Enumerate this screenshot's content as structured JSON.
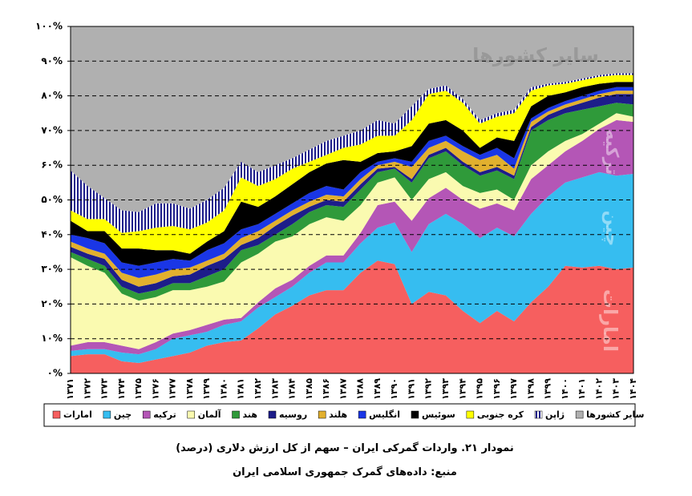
{
  "chart_data": {
    "type": "stacked-area",
    "title": "نمودار ۲۱. واردات گمرکی ایران – سهم از کل ارزش دلاری (درصد)",
    "subtitle": "منبع: داده‌های گمرک جمهوری اسلامی ایران",
    "categories": [
      "۱۳۷۱",
      "۱۳۷۲",
      "۱۳۷۳",
      "۱۳۷۴",
      "۱۳۷۵",
      "۱۳۷۶",
      "۱۳۷۷",
      "۱۳۷۸",
      "۱۳۷۹",
      "۱۳۸۰",
      "۱۳۸۱",
      "۱۳۸۲",
      "۱۳۸۳",
      "۱۳۸۴",
      "۱۳۸۵",
      "۱۳۸۶",
      "۱۳۸۷",
      "۱۳۸۸",
      "۱۳۸۹",
      "۱۳۹۰",
      "۱۳۹۱",
      "۱۳۹۲",
      "۱۳۹۳",
      "۱۳۹۴",
      "۱۳۹۵",
      "۱۳۹۶",
      "۱۳۹۷",
      "۱۳۹۸",
      "۱۳۹۹",
      "۱۴۰۰",
      "۱۴۰۱",
      "۱۴۰۲",
      "۱۴۰۳",
      "۱۴۰۴"
    ],
    "series": [
      {
        "name": "امارات",
        "color": "#f65f5f",
        "values": [
          5,
          5.5,
          5.5,
          3.5,
          3,
          4,
          5,
          6,
          8,
          9,
          9.5,
          13,
          17,
          19.5,
          22.5,
          24,
          24,
          29,
          32.5,
          31.5,
          20,
          23.5,
          22.5,
          18,
          14.5,
          18,
          15,
          20.5,
          25,
          31,
          30.5,
          31,
          30,
          30.5
        ]
      },
      {
        "name": "چین",
        "color": "#36bdf0",
        "values": [
          1.5,
          1.5,
          1.5,
          2.5,
          2.5,
          3,
          5,
          5,
          4,
          5,
          5.5,
          6,
          5,
          5.5,
          6.5,
          8,
          8,
          8.5,
          9.5,
          12,
          15,
          19.5,
          23.5,
          25,
          24.5,
          24,
          24.5,
          25.5,
          26,
          24,
          26,
          27,
          27,
          27
        ]
      },
      {
        "name": "ترکیه",
        "color": "#b456b6",
        "values": [
          1.5,
          2,
          2,
          2,
          1.5,
          2,
          1.5,
          1.5,
          2,
          1.5,
          1,
          1.5,
          2.5,
          2,
          2,
          2,
          2,
          3,
          6.5,
          6,
          9,
          7.5,
          7.5,
          7,
          8.5,
          7,
          7.5,
          10,
          9,
          9,
          10.5,
          12.5,
          16,
          15
        ]
      },
      {
        "name": "آلمان",
        "color": "#fafab0",
        "values": [
          25.5,
          22,
          20,
          15,
          14,
          13,
          12.5,
          11.5,
          11,
          11,
          16,
          14,
          13.5,
          12.5,
          12,
          11,
          10,
          8,
          6.5,
          7,
          6,
          5.5,
          4.5,
          4,
          4.5,
          4,
          3,
          4,
          4,
          3,
          2,
          1.5,
          2,
          1.5
        ]
      },
      {
        "name": "هند",
        "color": "#2f9a3a",
        "values": [
          1.5,
          2,
          2,
          2,
          2,
          2,
          2,
          2,
          3,
          3.5,
          3.5,
          2.5,
          2,
          3.5,
          3.5,
          3.5,
          4,
          4.5,
          3,
          2.5,
          5,
          6,
          6,
          6,
          5,
          5.5,
          6,
          10,
          9,
          8,
          7,
          5,
          3,
          3.5
        ]
      },
      {
        "name": "روسیه",
        "color": "#1d1d8a",
        "values": [
          1.5,
          1.5,
          2,
          2,
          2,
          2,
          2,
          2.5,
          3,
          3,
          1.5,
          2,
          2.5,
          2.5,
          1.5,
          1.5,
          1.5,
          1.5,
          1,
          0.5,
          1,
          1,
          1,
          1,
          1,
          1,
          1,
          1,
          1.5,
          1.5,
          2,
          2.5,
          2.5,
          3
        ]
      },
      {
        "name": "هلند",
        "color": "#e2b02e",
        "values": [
          1.5,
          1.5,
          1.5,
          2,
          2.5,
          2.5,
          2,
          2,
          1.5,
          1.5,
          2,
          2,
          1.5,
          1.5,
          1.5,
          1.5,
          1.5,
          1.5,
          1,
          1.5,
          3.5,
          2,
          2,
          3,
          3.5,
          3.5,
          2,
          1.5,
          1,
          1,
          1,
          1,
          1,
          1
        ]
      },
      {
        "name": "انگلیس",
        "color": "#1a36e6",
        "values": [
          2,
          3,
          3,
          3,
          3.5,
          3.5,
          3,
          2,
          3,
          3,
          2.5,
          2,
          2,
          2,
          2.5,
          2.5,
          2,
          2,
          1,
          1,
          1.5,
          2,
          1.5,
          1.5,
          1.5,
          2,
          3,
          1,
          1,
          1,
          1,
          1,
          1,
          1
        ]
      },
      {
        "name": "سوئیس",
        "color": "#000000",
        "values": [
          4,
          2,
          3.5,
          4,
          5,
          3.5,
          2.5,
          2,
          2.5,
          3.5,
          8,
          5,
          5,
          5.5,
          6,
          6.5,
          8.5,
          3,
          2.5,
          2,
          4.5,
          5,
          4.5,
          4.5,
          2,
          3,
          5,
          3.5,
          3.5,
          2.5,
          2.5,
          2,
          1.5,
          1.5
        ]
      },
      {
        "name": "کره جنوبی",
        "color": "#ffff00",
        "values": [
          3,
          3.5,
          3.5,
          4.5,
          5,
          6.5,
          7,
          7,
          5.5,
          6,
          7,
          6,
          5,
          4.5,
          3,
          2.5,
          3.5,
          5,
          5,
          4.5,
          7.5,
          8.5,
          8.5,
          8,
          7,
          6,
          8,
          4.5,
          3,
          2.5,
          2,
          2,
          2,
          2
        ]
      },
      {
        "name": "ژاپن",
        "color": "#1d1d8a",
        "pattern": "stripes",
        "values": [
          11.5,
          9.5,
          6,
          6.5,
          5.5,
          7,
          6.5,
          6,
          6.5,
          6.5,
          4.5,
          4,
          4,
          3,
          3.5,
          4,
          3.5,
          4,
          4.5,
          3.5,
          4,
          1.5,
          1.5,
          1,
          1,
          1,
          1,
          1,
          0.5,
          0.5,
          0.5,
          0.5,
          0.5,
          0.5
        ]
      },
      {
        "name": "سایر کشورها",
        "color": "#b0b0b0",
        "values": [
          41.5,
          46,
          49.5,
          53,
          53.5,
          51,
          51,
          52.5,
          50,
          46.5,
          39,
          42,
          40,
          38,
          35.5,
          33,
          31.5,
          30,
          27,
          28,
          23,
          18,
          17,
          21,
          27,
          25,
          24,
          17.5,
          16.5,
          16,
          15,
          14,
          13.5,
          13.5
        ]
      }
    ],
    "ylim": [
      0,
      100
    ],
    "yticks": [
      {
        "value": 0,
        "label": "۰%"
      },
      {
        "value": 10,
        "label": "۱۰%"
      },
      {
        "value": 20,
        "label": "۲۰%"
      },
      {
        "value": 30,
        "label": "۳۰%"
      },
      {
        "value": 40,
        "label": "۴۰%"
      },
      {
        "value": 50,
        "label": "۵۰%"
      },
      {
        "value": 60,
        "label": "۶۰%"
      },
      {
        "value": 70,
        "label": "۷۰%"
      },
      {
        "value": 80,
        "label": "۸۰%"
      },
      {
        "value": 90,
        "label": "۹۰%"
      },
      {
        "value": 100,
        "label": "۱۰۰%"
      }
    ],
    "grid": true,
    "legend": "bottom",
    "annotations": [
      "سایر کشورها",
      "ترکیه",
      "چین",
      "امارات"
    ]
  }
}
